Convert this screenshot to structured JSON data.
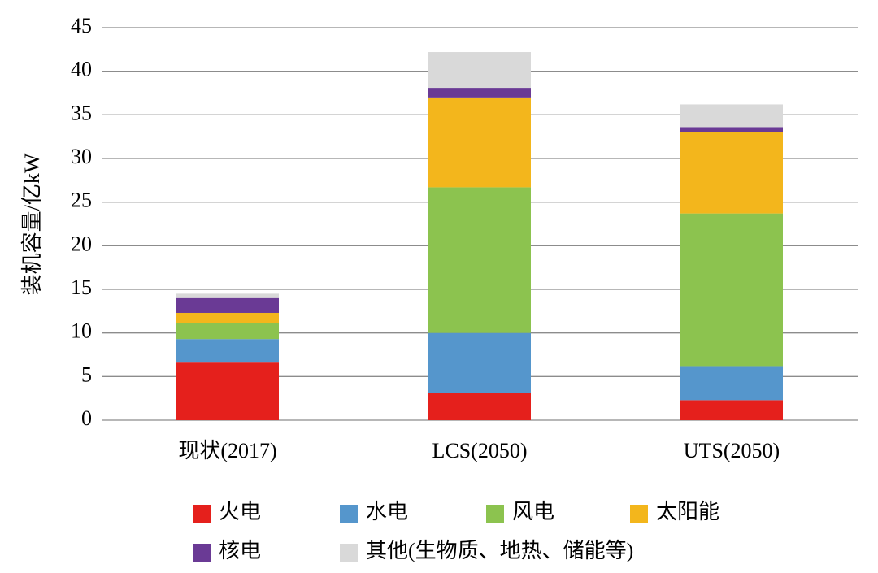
{
  "chart_data": {
    "type": "stacked_bar",
    "y_label": "装机容量/亿kW",
    "categories": [
      "现状(2017)",
      "LCS(2050)",
      "UTS(2050)"
    ],
    "series": [
      {
        "name": "火电",
        "color": "#e5201c",
        "values": [
          6.6,
          3.1,
          2.3
        ]
      },
      {
        "name": "水电",
        "color": "#5596cc",
        "values": [
          2.7,
          6.9,
          3.9
        ]
      },
      {
        "name": "风电",
        "color": "#8cc34f",
        "values": [
          1.8,
          16.7,
          17.5
        ]
      },
      {
        "name": "太阳能",
        "color": "#f3b61c",
        "values": [
          1.2,
          10.3,
          9.3
        ]
      },
      {
        "name": "核电",
        "color": "#6a3a95",
        "values": [
          1.7,
          1.1,
          0.6
        ]
      },
      {
        "name": "其他(生物质、地热、储能等)",
        "color": "#d9d9d9",
        "values": [
          0.5,
          4.1,
          2.6
        ]
      }
    ],
    "ylim": [
      0,
      45
    ],
    "yticks": [
      0,
      5,
      10,
      15,
      20,
      25,
      30,
      35,
      40,
      45
    ],
    "grid": true
  }
}
